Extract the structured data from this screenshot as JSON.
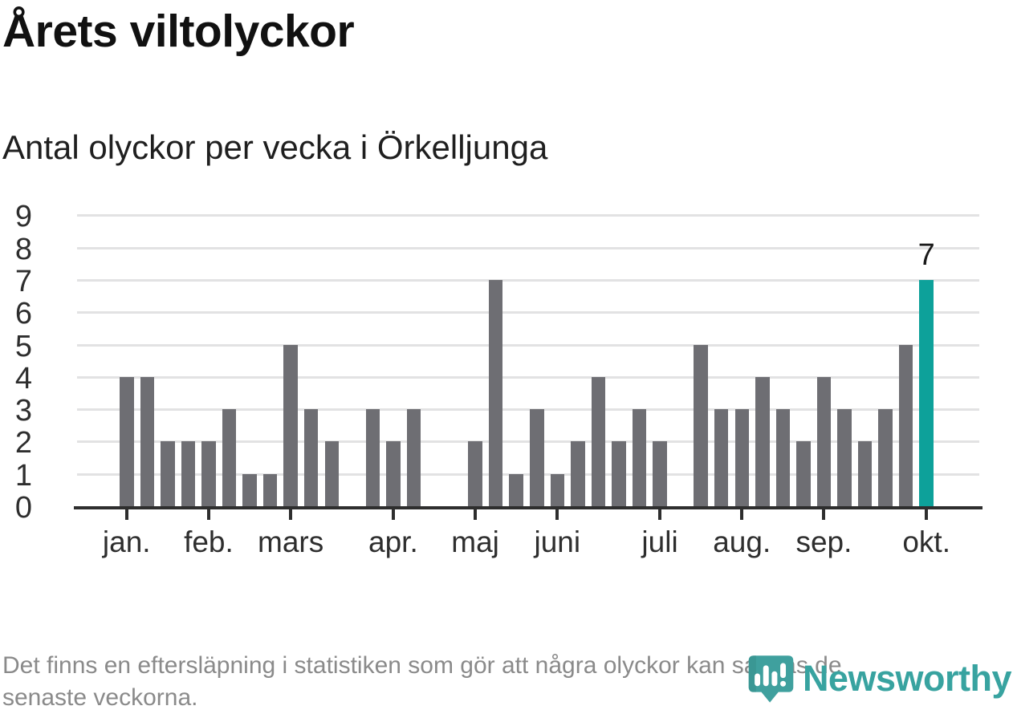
{
  "header": {
    "title": "Årets viltolyckor",
    "subtitle": "Antal olyckor per vecka i Örkelljunga"
  },
  "chart_data": {
    "type": "bar",
    "title": "Årets viltolyckor",
    "subtitle": "Antal olyckor per vecka i Örkelljunga",
    "ylabel": "",
    "xlabel": "",
    "ylim": [
      0,
      9
    ],
    "ytick_labels": [
      "0",
      "1",
      "2",
      "3",
      "4",
      "5",
      "6",
      "7",
      "8",
      "9"
    ],
    "grid": true,
    "legend": false,
    "x_unit": "vecka",
    "values": [
      4,
      4,
      2,
      2,
      2,
      3,
      1,
      1,
      5,
      3,
      2,
      0,
      3,
      2,
      3,
      0,
      0,
      2,
      7,
      1,
      3,
      1,
      2,
      4,
      2,
      3,
      2,
      0,
      5,
      3,
      3,
      4,
      3,
      2,
      4,
      3,
      2,
      3,
      5,
      7
    ],
    "month_ticks": [
      {
        "label": "jan.",
        "week_index": 0
      },
      {
        "label": "feb.",
        "week_index": 4
      },
      {
        "label": "mars",
        "week_index": 8
      },
      {
        "label": "apr.",
        "week_index": 13
      },
      {
        "label": "maj",
        "week_index": 17
      },
      {
        "label": "juni",
        "week_index": 21
      },
      {
        "label": "juli",
        "week_index": 26
      },
      {
        "label": "aug.",
        "week_index": 30
      },
      {
        "label": "sep.",
        "week_index": 34
      },
      {
        "label": "okt.",
        "week_index": 39
      }
    ],
    "highlight": {
      "index": 39,
      "value_label": "7"
    },
    "colors": {
      "bar": "#6e6e73",
      "highlight": "#0da19a",
      "grid": "#e2e2e3",
      "axis": "#2e2e2e"
    }
  },
  "footer": {
    "lines": [
      "Det finns en eftersläpning i statistiken som gör att några olyckor kan saknas de",
      "senaste veckorna."
    ]
  },
  "branding": {
    "wordmark": "Newsworthy",
    "logo_icon": "newsworthy-bubble-chart-icon",
    "color": "#38a3a0"
  }
}
